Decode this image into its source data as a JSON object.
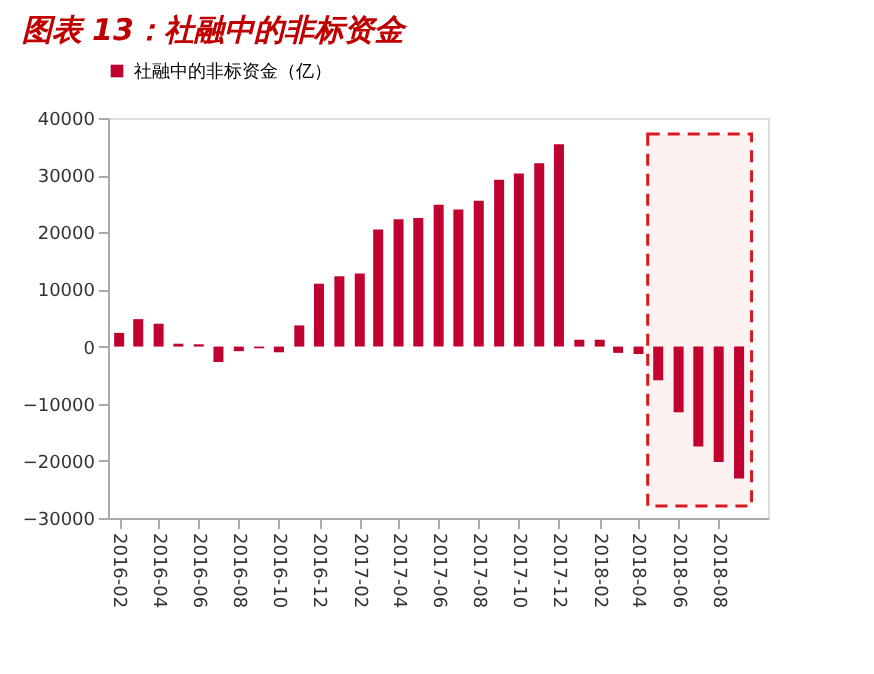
{
  "chart_data": {
    "type": "bar",
    "title": "图表 13：社融中的非标资金",
    "x": [
      "2016-02",
      "2016-03",
      "2016-04",
      "2016-05",
      "2016-06",
      "2016-07",
      "2016-08",
      "2016-09",
      "2016-10",
      "2016-11",
      "2016-12",
      "2017-01",
      "2017-02",
      "2017-03",
      "2017-04",
      "2017-05",
      "2017-06",
      "2017-07",
      "2017-08",
      "2017-09",
      "2017-10",
      "2017-11",
      "2017-12",
      "2018-01",
      "2018-02",
      "2018-03",
      "2018-04",
      "2018-05",
      "2018-06",
      "2018-07",
      "2018-08",
      "2018-09"
    ],
    "series": [
      {
        "name": "社融中的非标资金（亿）",
        "color": "#c00030",
        "values": [
          2400,
          4800,
          4000,
          500,
          400,
          -2700,
          -800,
          -300,
          -1000,
          3700,
          11000,
          12300,
          12800,
          20500,
          22300,
          22500,
          24800,
          24000,
          25500,
          29200,
          30300,
          32100,
          35400,
          1200,
          1200,
          -1100,
          -1300,
          -5900,
          -11500,
          -17500,
          -20200,
          -23100
        ]
      }
    ],
    "xlim": [
      "2016-01-15",
      "2018-10-15"
    ],
    "xticks": [
      "2016-02",
      "2016-04",
      "2016-06",
      "2016-08",
      "2016-10",
      "2016-12",
      "2017-02",
      "2017-04",
      "2017-06",
      "2017-08",
      "2017-10",
      "2017-12",
      "2018-02",
      "2018-04",
      "2018-06",
      "2018-08"
    ],
    "ylim": [
      -30000,
      40000
    ],
    "yticks": [
      -30000,
      -20000,
      -10000,
      0,
      10000,
      20000,
      30000,
      40000
    ],
    "bands": [
      {
        "axis": "x",
        "from": "2018-04-15",
        "to": "2018-09-20",
        "color": "#d7191c"
      }
    ],
    "grid": false,
    "legend": "top"
  }
}
